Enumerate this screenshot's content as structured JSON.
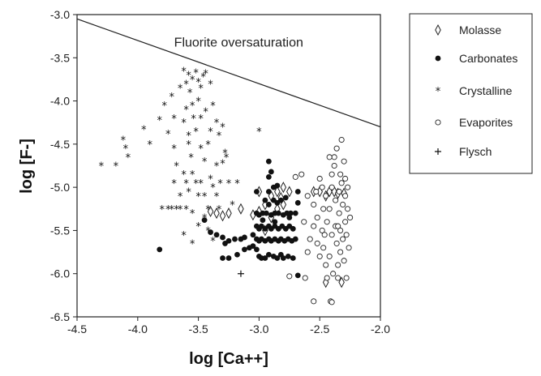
{
  "chart_data": {
    "type": "scatter",
    "xlabel": "log [Ca++]",
    "ylabel": "log [F-]",
    "xlim": [
      -4.5,
      -2.0
    ],
    "ylim": [
      -6.5,
      -3.0
    ],
    "x_ticks": [
      "-4.5",
      "-4.0",
      "-3.5",
      "-3.0",
      "-2.5",
      "-2.0"
    ],
    "y_ticks": [
      "-3.0",
      "-3.5",
      "-4.0",
      "-4.5",
      "-5.0",
      "-5.5",
      "-6.0",
      "-6.5"
    ],
    "x_tick_values": [
      -4.5,
      -4.0,
      -3.5,
      -3.0,
      -2.5,
      -2.0
    ],
    "y_tick_values": [
      -3.0,
      -3.5,
      -4.0,
      -4.5,
      -5.0,
      -5.5,
      -6.0,
      -6.5
    ],
    "grid": false,
    "legend_position": "right-outside-top",
    "annotation": {
      "text": "Fluorite oversaturation",
      "x": -3.7,
      "y": -3.37
    },
    "saturation_line": {
      "x": [
        -4.5,
        -2.0
      ],
      "y": [
        -3.05,
        -4.3
      ]
    },
    "series": [
      {
        "name": "Molasse",
        "marker": "diamond-open",
        "points": [
          [
            -3.4,
            -5.28
          ],
          [
            -3.35,
            -5.3
          ],
          [
            -3.3,
            -5.33
          ],
          [
            -3.25,
            -5.3
          ],
          [
            -3.15,
            -5.25
          ],
          [
            -3.05,
            -5.32
          ],
          [
            -3.0,
            -5.28
          ],
          [
            -2.95,
            -5.2
          ],
          [
            -2.9,
            -5.1
          ],
          [
            -2.85,
            -5.05
          ],
          [
            -2.82,
            -5.12
          ],
          [
            -2.8,
            -5.0
          ],
          [
            -2.75,
            -5.05
          ],
          [
            -2.95,
            -5.5
          ],
          [
            -2.9,
            -5.35
          ],
          [
            -2.85,
            -5.25
          ],
          [
            -2.8,
            -5.2
          ],
          [
            -2.55,
            -5.05
          ],
          [
            -2.5,
            -5.05
          ],
          [
            -2.45,
            -5.1
          ],
          [
            -2.42,
            -5.05
          ],
          [
            -2.38,
            -5.05
          ],
          [
            -2.35,
            -5.07
          ],
          [
            -2.3,
            -5.07
          ],
          [
            -2.45,
            -6.1
          ],
          [
            -2.32,
            -6.1
          ],
          [
            -3.0,
            -5.05
          ]
        ]
      },
      {
        "name": "Carbonates",
        "marker": "circle-filled",
        "points": [
          [
            -3.82,
            -5.72
          ],
          [
            -3.45,
            -5.38
          ],
          [
            -3.4,
            -5.52
          ],
          [
            -3.35,
            -5.55
          ],
          [
            -3.3,
            -5.58
          ],
          [
            -3.28,
            -5.65
          ],
          [
            -3.25,
            -5.62
          ],
          [
            -3.2,
            -5.6
          ],
          [
            -3.15,
            -5.6
          ],
          [
            -3.12,
            -5.58
          ],
          [
            -3.3,
            -5.82
          ],
          [
            -3.25,
            -5.82
          ],
          [
            -3.18,
            -5.78
          ],
          [
            -3.12,
            -5.72
          ],
          [
            -3.08,
            -5.7
          ],
          [
            -3.05,
            -5.68
          ],
          [
            -3.02,
            -5.72
          ],
          [
            -3.0,
            -5.8
          ],
          [
            -2.98,
            -5.82
          ],
          [
            -2.95,
            -5.82
          ],
          [
            -2.92,
            -5.78
          ],
          [
            -2.88,
            -5.8
          ],
          [
            -2.85,
            -5.82
          ],
          [
            -2.82,
            -5.78
          ],
          [
            -2.8,
            -5.82
          ],
          [
            -2.76,
            -5.8
          ],
          [
            -2.72,
            -5.82
          ],
          [
            -3.02,
            -5.6
          ],
          [
            -3.0,
            -5.62
          ],
          [
            -2.98,
            -5.6
          ],
          [
            -2.95,
            -5.62
          ],
          [
            -2.92,
            -5.6
          ],
          [
            -2.9,
            -5.62
          ],
          [
            -2.87,
            -5.6
          ],
          [
            -2.84,
            -5.62
          ],
          [
            -2.82,
            -5.6
          ],
          [
            -2.79,
            -5.62
          ],
          [
            -2.76,
            -5.6
          ],
          [
            -2.73,
            -5.62
          ],
          [
            -2.7,
            -5.6
          ],
          [
            -3.02,
            -5.45
          ],
          [
            -3.0,
            -5.48
          ],
          [
            -2.98,
            -5.45
          ],
          [
            -2.95,
            -5.48
          ],
          [
            -2.92,
            -5.45
          ],
          [
            -2.9,
            -5.48
          ],
          [
            -2.87,
            -5.45
          ],
          [
            -2.84,
            -5.48
          ],
          [
            -2.81,
            -5.45
          ],
          [
            -2.78,
            -5.48
          ],
          [
            -2.75,
            -5.45
          ],
          [
            -2.72,
            -5.48
          ],
          [
            -3.02,
            -5.3
          ],
          [
            -3.0,
            -5.32
          ],
          [
            -2.97,
            -5.3
          ],
          [
            -2.94,
            -5.3
          ],
          [
            -2.9,
            -5.32
          ],
          [
            -2.87,
            -5.3
          ],
          [
            -2.84,
            -5.3
          ],
          [
            -2.8,
            -5.32
          ],
          [
            -2.77,
            -5.3
          ],
          [
            -2.74,
            -5.3
          ],
          [
            -2.7,
            -5.3
          ],
          [
            -2.95,
            -5.15
          ],
          [
            -2.92,
            -5.2
          ],
          [
            -2.88,
            -5.15
          ],
          [
            -2.85,
            -5.18
          ],
          [
            -2.82,
            -5.15
          ],
          [
            -2.78,
            -5.12
          ],
          [
            -2.92,
            -5.05
          ],
          [
            -2.88,
            -5.0
          ],
          [
            -2.85,
            -4.98
          ],
          [
            -2.92,
            -4.88
          ],
          [
            -2.9,
            -4.82
          ],
          [
            -2.92,
            -4.7
          ],
          [
            -3.02,
            -5.05
          ],
          [
            -2.68,
            -5.05
          ],
          [
            -2.68,
            -5.18
          ],
          [
            -2.68,
            -6.02
          ],
          [
            -3.05,
            -5.55
          ],
          [
            -2.97,
            -5.38
          ],
          [
            -2.87,
            -5.4
          ],
          [
            -2.75,
            -5.35
          ]
        ]
      },
      {
        "name": "Crystalline",
        "marker": "star",
        "points": [
          [
            -4.3,
            -4.75
          ],
          [
            -4.18,
            -4.75
          ],
          [
            -4.12,
            -4.45
          ],
          [
            -4.1,
            -4.55
          ],
          [
            -4.08,
            -4.65
          ],
          [
            -3.95,
            -4.33
          ],
          [
            -3.9,
            -4.5
          ],
          [
            -3.82,
            -4.22
          ],
          [
            -3.75,
            -4.38
          ],
          [
            -3.72,
            -3.95
          ],
          [
            -3.7,
            -4.2
          ],
          [
            -3.7,
            -4.55
          ],
          [
            -3.68,
            -4.75
          ],
          [
            -3.65,
            -3.85
          ],
          [
            -3.62,
            -3.65
          ],
          [
            -3.6,
            -3.8
          ],
          [
            -3.58,
            -3.7
          ],
          [
            -3.57,
            -3.9
          ],
          [
            -3.55,
            -4.05
          ],
          [
            -3.55,
            -3.75
          ],
          [
            -3.52,
            -3.67
          ],
          [
            -3.5,
            -3.78
          ],
          [
            -3.48,
            -3.85
          ],
          [
            -3.46,
            -3.72
          ],
          [
            -3.44,
            -3.68
          ],
          [
            -3.4,
            -3.8
          ],
          [
            -3.38,
            -4.05
          ],
          [
            -3.35,
            -4.25
          ],
          [
            -3.33,
            -4.4
          ],
          [
            -3.3,
            -4.3
          ],
          [
            -3.28,
            -4.6
          ],
          [
            -3.27,
            -4.65
          ],
          [
            -3.6,
            -4.1
          ],
          [
            -3.62,
            -4.25
          ],
          [
            -3.58,
            -4.5
          ],
          [
            -3.56,
            -4.65
          ],
          [
            -3.54,
            -4.2
          ],
          [
            -3.52,
            -4.35
          ],
          [
            -3.5,
            -4.0
          ],
          [
            -3.48,
            -4.55
          ],
          [
            -3.45,
            -4.7
          ],
          [
            -3.42,
            -4.5
          ],
          [
            -3.4,
            -4.9
          ],
          [
            -3.38,
            -5.0
          ],
          [
            -3.35,
            -5.1
          ],
          [
            -3.32,
            -4.95
          ],
          [
            -3.3,
            -4.72
          ],
          [
            -3.18,
            -4.95
          ],
          [
            -3.7,
            -4.95
          ],
          [
            -3.65,
            -5.1
          ],
          [
            -3.6,
            -5.25
          ],
          [
            -3.55,
            -5.3
          ],
          [
            -3.5,
            -5.45
          ],
          [
            -3.45,
            -5.35
          ],
          [
            -3.42,
            -5.5
          ],
          [
            -3.38,
            -5.62
          ],
          [
            -3.62,
            -5.55
          ],
          [
            -3.55,
            -5.65
          ],
          [
            -3.8,
            -5.25
          ],
          [
            -3.75,
            -5.25
          ],
          [
            -3.72,
            -5.25
          ],
          [
            -3.68,
            -5.25
          ],
          [
            -3.65,
            -5.25
          ],
          [
            -3.62,
            -4.85
          ],
          [
            -3.6,
            -4.95
          ],
          [
            -3.58,
            -5.05
          ],
          [
            -3.55,
            -4.85
          ],
          [
            -3.52,
            -4.95
          ],
          [
            -3.5,
            -5.1
          ],
          [
            -3.48,
            -4.95
          ],
          [
            -3.45,
            -5.1
          ],
          [
            -3.42,
            -5.25
          ],
          [
            -3.4,
            -4.35
          ],
          [
            -3.35,
            -4.75
          ],
          [
            -3.33,
            -5.25
          ],
          [
            -3.25,
            -4.95
          ],
          [
            -3.22,
            -5.2
          ],
          [
            -3.0,
            -4.35
          ],
          [
            -3.78,
            -4.05
          ],
          [
            -3.48,
            -4.2
          ],
          [
            -3.44,
            -4.12
          ],
          [
            -3.58,
            -4.4
          ]
        ]
      },
      {
        "name": "Evaporites",
        "marker": "circle-open",
        "points": [
          [
            -2.65,
            -4.85
          ],
          [
            -2.6,
            -5.1
          ],
          [
            -2.58,
            -5.6
          ],
          [
            -2.55,
            -5.2
          ],
          [
            -2.52,
            -5.35
          ],
          [
            -2.5,
            -4.9
          ],
          [
            -2.48,
            -5.5
          ],
          [
            -2.47,
            -5.7
          ],
          [
            -2.45,
            -5.1
          ],
          [
            -2.44,
            -5.4
          ],
          [
            -2.42,
            -5.25
          ],
          [
            -2.42,
            -5.8
          ],
          [
            -2.41,
            -6.32
          ],
          [
            -2.4,
            -4.85
          ],
          [
            -2.4,
            -5.0
          ],
          [
            -2.4,
            -5.55
          ],
          [
            -2.39,
            -6.0
          ],
          [
            -2.38,
            -4.65
          ],
          [
            -2.38,
            -4.75
          ],
          [
            -2.37,
            -5.15
          ],
          [
            -2.37,
            -5.45
          ],
          [
            -2.36,
            -5.65
          ],
          [
            -2.35,
            -5.9
          ],
          [
            -2.35,
            -6.05
          ],
          [
            -2.34,
            -5.05
          ],
          [
            -2.34,
            -5.3
          ],
          [
            -2.33,
            -5.5
          ],
          [
            -2.33,
            -5.75
          ],
          [
            -2.32,
            -4.45
          ],
          [
            -2.32,
            -4.95
          ],
          [
            -2.31,
            -5.2
          ],
          [
            -2.31,
            -5.6
          ],
          [
            -2.3,
            -5.85
          ],
          [
            -2.3,
            -4.7
          ],
          [
            -2.29,
            -5.1
          ],
          [
            -2.29,
            -5.4
          ],
          [
            -2.28,
            -5.55
          ],
          [
            -2.28,
            -6.05
          ],
          [
            -2.27,
            -5.0
          ],
          [
            -2.27,
            -5.25
          ],
          [
            -2.26,
            -5.7
          ],
          [
            -2.25,
            -5.35
          ],
          [
            -2.55,
            -5.45
          ],
          [
            -2.52,
            -5.65
          ],
          [
            -2.5,
            -5.8
          ],
          [
            -2.47,
            -5.25
          ],
          [
            -2.45,
            -5.9
          ],
          [
            -2.44,
            -6.05
          ],
          [
            -2.55,
            -6.32
          ],
          [
            -2.6,
            -5.75
          ],
          [
            -2.63,
            -5.4
          ],
          [
            -2.62,
            -6.05
          ],
          [
            -2.7,
            -4.88
          ],
          [
            -2.75,
            -6.03
          ],
          [
            -2.4,
            -6.33
          ],
          [
            -2.36,
            -4.55
          ],
          [
            -2.33,
            -4.85
          ],
          [
            -2.29,
            -4.9
          ],
          [
            -2.42,
            -4.65
          ],
          [
            -2.46,
            -5.55
          ],
          [
            -2.48,
            -5.0
          ],
          [
            -2.53,
            -5.05
          ],
          [
            -2.35,
            -5.45
          ]
        ]
      },
      {
        "name": "Flysch",
        "marker": "plus",
        "points": [
          [
            -3.15,
            -6.0
          ]
        ]
      }
    ]
  }
}
